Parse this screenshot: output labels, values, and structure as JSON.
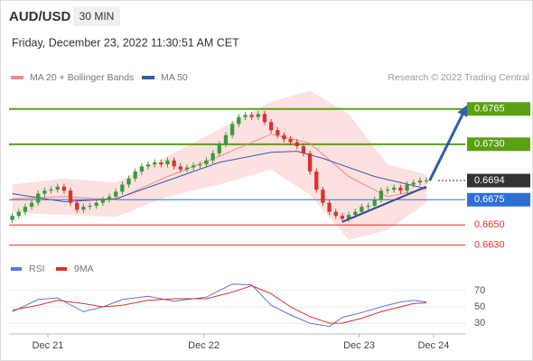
{
  "chart_data": [
    {
      "type": "candlestick",
      "title": "AUD/USD",
      "subtitle": "30 MIN",
      "date": "Friday, December 23, 2022 11:30:51 AM CET",
      "source": "Research © 2022 Trading Central",
      "up_color": "#3d9a3d",
      "down_color": "#d9332b",
      "xlim": [
        -0.5,
        70
      ],
      "ylim": [
        0.6618,
        0.6788
      ],
      "open": [
        0.6655,
        0.6659,
        0.6663,
        0.6668,
        0.6672,
        0.6681,
        0.6684,
        0.6685,
        0.6688,
        0.6684,
        0.6672,
        0.6665,
        0.6668,
        0.6669,
        0.6672,
        0.6675,
        0.6678,
        0.6683,
        0.669,
        0.6696,
        0.6703,
        0.6708,
        0.671,
        0.6712,
        0.671,
        0.6714,
        0.6708,
        0.6705,
        0.6707,
        0.6709,
        0.671,
        0.6714,
        0.6721,
        0.673,
        0.6739,
        0.675,
        0.6757,
        0.6759,
        0.6757,
        0.676,
        0.6752,
        0.6744,
        0.6739,
        0.6735,
        0.6732,
        0.6728,
        0.6721,
        0.6703,
        0.6685,
        0.6672,
        0.6663,
        0.6659,
        0.6656,
        0.666,
        0.6663,
        0.6668,
        0.6669,
        0.6675,
        0.6684,
        0.6685,
        0.6687,
        0.6684,
        0.669,
        0.6692,
        0.6694
      ],
      "high": [
        0.6662,
        0.6666,
        0.6671,
        0.6675,
        0.6684,
        0.6687,
        0.6688,
        0.6691,
        0.6691,
        0.6687,
        0.6675,
        0.6671,
        0.6672,
        0.6675,
        0.6678,
        0.6681,
        0.6686,
        0.6693,
        0.6699,
        0.6706,
        0.6711,
        0.6713,
        0.6715,
        0.6715,
        0.6717,
        0.6717,
        0.6711,
        0.671,
        0.6712,
        0.6713,
        0.6717,
        0.6724,
        0.6733,
        0.6742,
        0.6753,
        0.676,
        0.6762,
        0.6762,
        0.6763,
        0.6763,
        0.6755,
        0.6747,
        0.6742,
        0.6738,
        0.6735,
        0.6731,
        0.6724,
        0.6706,
        0.6688,
        0.6675,
        0.6666,
        0.6662,
        0.6663,
        0.6666,
        0.6671,
        0.6672,
        0.6678,
        0.6687,
        0.6688,
        0.669,
        0.669,
        0.6693,
        0.6695,
        0.6697,
        0.6697
      ],
      "low": [
        0.6652,
        0.6656,
        0.666,
        0.6665,
        0.6669,
        0.6678,
        0.6681,
        0.6682,
        0.6681,
        0.6669,
        0.6662,
        0.6662,
        0.6665,
        0.6666,
        0.6669,
        0.6672,
        0.6675,
        0.668,
        0.6687,
        0.6693,
        0.67,
        0.6705,
        0.6707,
        0.6707,
        0.6707,
        0.6705,
        0.6702,
        0.6702,
        0.6704,
        0.6706,
        0.6707,
        0.6711,
        0.6718,
        0.6727,
        0.6736,
        0.6747,
        0.6754,
        0.6754,
        0.6754,
        0.6749,
        0.6741,
        0.6736,
        0.6732,
        0.6729,
        0.6725,
        0.6718,
        0.67,
        0.6682,
        0.6669,
        0.666,
        0.6656,
        0.6653,
        0.6653,
        0.6657,
        0.666,
        0.6665,
        0.6666,
        0.6672,
        0.6681,
        0.6682,
        0.6681,
        0.6681,
        0.6687,
        0.6689,
        0.6691
      ],
      "close": [
        0.6659,
        0.6663,
        0.6668,
        0.6672,
        0.6681,
        0.6684,
        0.6685,
        0.6688,
        0.6684,
        0.6672,
        0.6665,
        0.6668,
        0.6669,
        0.6672,
        0.6675,
        0.6678,
        0.6683,
        0.669,
        0.6696,
        0.6703,
        0.6708,
        0.671,
        0.6712,
        0.671,
        0.6714,
        0.6708,
        0.6705,
        0.6707,
        0.6709,
        0.671,
        0.6714,
        0.6721,
        0.673,
        0.6739,
        0.675,
        0.6757,
        0.6759,
        0.6757,
        0.676,
        0.6752,
        0.6744,
        0.6739,
        0.6735,
        0.6732,
        0.6728,
        0.6721,
        0.6703,
        0.6685,
        0.6672,
        0.6663,
        0.6659,
        0.6656,
        0.666,
        0.6663,
        0.6668,
        0.6669,
        0.6675,
        0.6684,
        0.6685,
        0.6687,
        0.6684,
        0.669,
        0.6692,
        0.6694,
        0.6694
      ],
      "series": [
        {
          "name": "MA 20 + Bollinger Bands",
          "color": "#f08a8a",
          "band_color": "#fde0e0",
          "x": [
            0,
            8,
            16,
            24,
            32,
            40,
            46,
            52,
            58,
            64
          ],
          "values": [
            0.6676,
            0.6678,
            0.6675,
            0.6698,
            0.6718,
            0.674,
            0.6731,
            0.6698,
            0.6678,
            0.6686
          ],
          "upper": [
            0.669,
            0.6696,
            0.6692,
            0.6718,
            0.6745,
            0.6772,
            0.6783,
            0.676,
            0.671,
            0.67
          ],
          "lower": [
            0.6662,
            0.666,
            0.6658,
            0.6678,
            0.669,
            0.6705,
            0.668,
            0.6635,
            0.6645,
            0.6672
          ]
        },
        {
          "name": "MA 50",
          "color": "#3a5aa8",
          "x": [
            0,
            8,
            16,
            24,
            32,
            40,
            44,
            48,
            56,
            64
          ],
          "values": [
            0.6681,
            0.6673,
            0.6676,
            0.6694,
            0.6712,
            0.6722,
            0.6723,
            0.6716,
            0.6698,
            0.6686
          ]
        }
      ],
      "levels": [
        {
          "value": 0.6765,
          "label": "0.6765",
          "color": "#5aa012",
          "box": true
        },
        {
          "value": 0.673,
          "label": "0.6730",
          "color": "#5aa012",
          "box": true
        },
        {
          "value": 0.6694,
          "label": "0.6694",
          "color": "#333333",
          "box": true,
          "current": true
        },
        {
          "value": 0.6675,
          "label": "0.6675",
          "color": "#2e6fd6",
          "box": true
        },
        {
          "value": 0.665,
          "label": "0.6650",
          "color": "#e0302a",
          "box": false
        },
        {
          "value": 0.663,
          "label": "0.6630",
          "color": "#e0302a",
          "box": false
        }
      ],
      "trendline": {
        "color": "#2f4f9a",
        "x": [
          51,
          64
        ],
        "values": [
          0.6653,
          0.6688
        ]
      },
      "arrow": {
        "color": "#2f5fa8",
        "x": [
          64.5,
          70
        ],
        "values": [
          0.6694,
          0.6765
        ]
      }
    },
    {
      "type": "line",
      "xlim": [
        -0.5,
        70
      ],
      "ylim": [
        19,
        81
      ],
      "yticks": [
        30,
        50,
        70
      ],
      "grid": true,
      "xticks": [
        {
          "value": 5.5,
          "label": "Dec 21"
        },
        {
          "value": 29.6,
          "label": "Dec 22"
        },
        {
          "value": 53.6,
          "label": "Dec 23"
        },
        {
          "value": 65.1,
          "label": "Dec 24"
        }
      ],
      "series": [
        {
          "name": "RSI",
          "color": "#5577dd",
          "x": [
            0,
            4,
            7,
            11,
            14,
            17,
            21,
            25,
            30,
            34,
            37,
            40,
            43,
            46,
            49,
            51,
            54,
            57,
            60,
            62,
            64
          ],
          "values": [
            44,
            59,
            61,
            44,
            50,
            59,
            63,
            57,
            62,
            78,
            77,
            52,
            40,
            30,
            26,
            37,
            43,
            50,
            56,
            58,
            56
          ]
        },
        {
          "name": "9MA",
          "color": "#e0302a",
          "x": [
            0,
            4,
            7,
            11,
            14,
            17,
            21,
            25,
            30,
            34,
            37,
            40,
            43,
            46,
            49,
            51,
            54,
            57,
            60,
            62,
            64
          ],
          "values": [
            46,
            52,
            58,
            54,
            50,
            52,
            58,
            60,
            60,
            68,
            76,
            66,
            50,
            38,
            30,
            30,
            36,
            44,
            50,
            54,
            55
          ]
        }
      ]
    }
  ]
}
